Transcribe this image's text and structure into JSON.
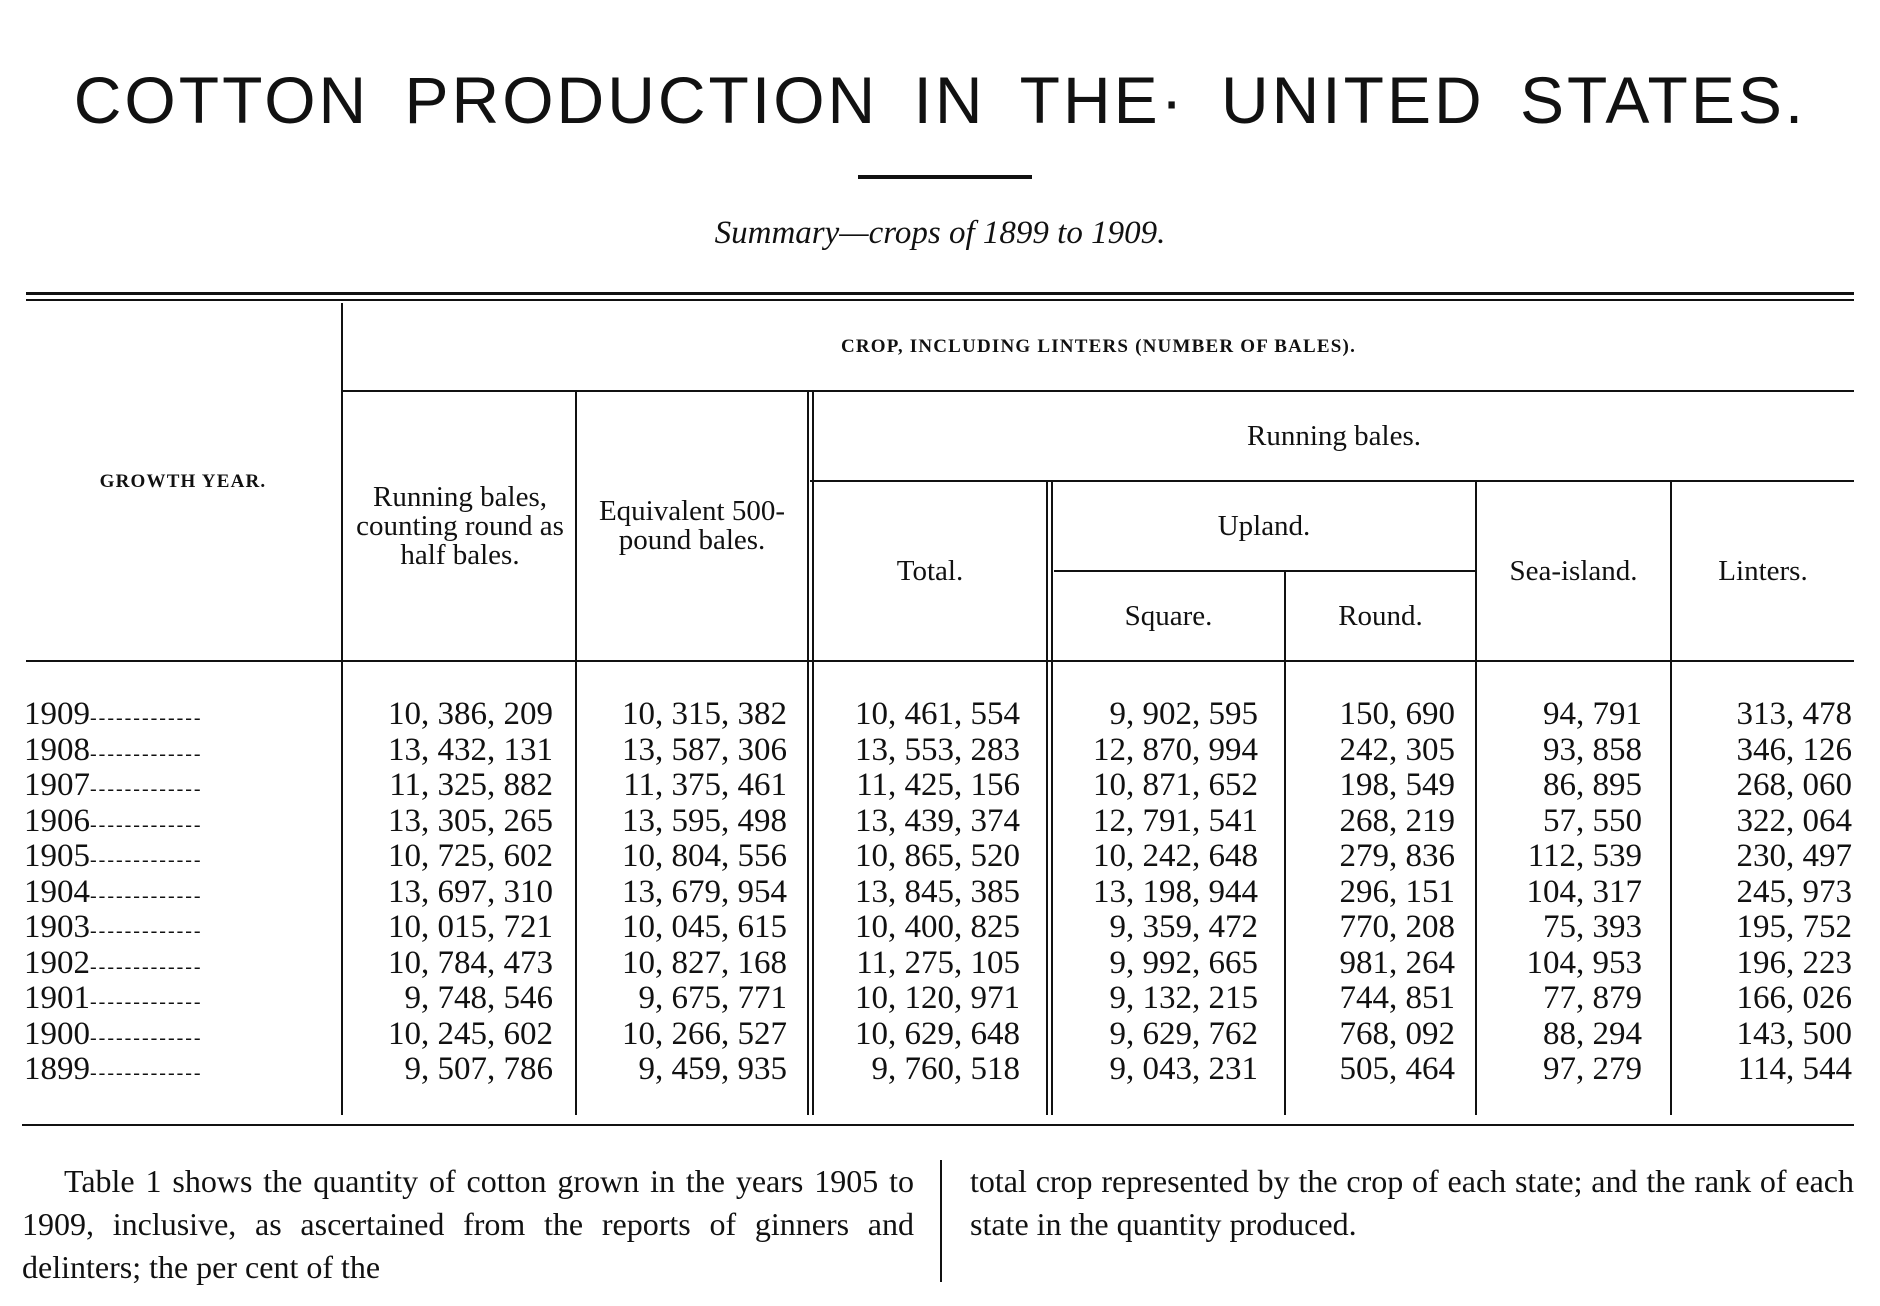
{
  "title": "COTTON PRODUCTION IN THE· UNITED STATES.",
  "subtitle": "Summary—crops of 1899 to 1909.",
  "table": {
    "growth_year_header": "GROWTH YEAR.",
    "group_header": "CROP, INCLUDING LINTERS (NUMBER OF BALES).",
    "running_bales_header": "Running bales.",
    "upland_header": "Upland.",
    "columns": {
      "running_half": "Running bales, counting round as half bales.",
      "equivalent": "Equivalent 500-pound bales.",
      "total": "Total.",
      "square": "Square.",
      "round": "Round.",
      "sea_island": "Sea-island.",
      "linters": "Linters."
    },
    "rows": [
      {
        "year": "1909",
        "running_half": "10, 386, 209",
        "equivalent": "10, 315, 382",
        "total": "10, 461, 554",
        "square": "9, 902, 595",
        "round": "150, 690",
        "sea_island": "94, 791",
        "linters": "313, 478"
      },
      {
        "year": "1908",
        "running_half": "13, 432, 131",
        "equivalent": "13, 587, 306",
        "total": "13, 553, 283",
        "square": "12, 870, 994",
        "round": "242, 305",
        "sea_island": "93, 858",
        "linters": "346, 126"
      },
      {
        "year": "1907",
        "running_half": "11, 325, 882",
        "equivalent": "11, 375, 461",
        "total": "11, 425, 156",
        "square": "10, 871, 652",
        "round": "198, 549",
        "sea_island": "86, 895",
        "linters": "268, 060"
      },
      {
        "year": "1906",
        "running_half": "13, 305, 265",
        "equivalent": "13, 595, 498",
        "total": "13, 439, 374",
        "square": "12, 791, 541",
        "round": "268, 219",
        "sea_island": "57, 550",
        "linters": "322, 064"
      },
      {
        "year": "1905",
        "running_half": "10, 725, 602",
        "equivalent": "10, 804, 556",
        "total": "10, 865, 520",
        "square": "10, 242, 648",
        "round": "279, 836",
        "sea_island": "112, 539",
        "linters": "230, 497"
      },
      {
        "year": "1904",
        "running_half": "13, 697, 310",
        "equivalent": "13, 679, 954",
        "total": "13, 845, 385",
        "square": "13, 198, 944",
        "round": "296, 151",
        "sea_island": "104, 317",
        "linters": "245, 973"
      },
      {
        "year": "1903",
        "running_half": "10, 015, 721",
        "equivalent": "10, 045, 615",
        "total": "10, 400, 825",
        "square": "9, 359, 472",
        "round": "770, 208",
        "sea_island": "75, 393",
        "linters": "195, 752"
      },
      {
        "year": "1902",
        "running_half": "10, 784, 473",
        "equivalent": "10, 827, 168",
        "total": "11, 275, 105",
        "square": "9, 992, 665",
        "round": "981, 264",
        "sea_island": "104, 953",
        "linters": "196, 223"
      },
      {
        "year": "1901",
        "running_half": "9, 748, 546",
        "equivalent": "9, 675, 771",
        "total": "10, 120, 971",
        "square": "9, 132, 215",
        "round": "744, 851",
        "sea_island": "77, 879",
        "linters": "166, 026"
      },
      {
        "year": "1900",
        "running_half": "10, 245, 602",
        "equivalent": "10, 266, 527",
        "total": "10, 629, 648",
        "square": "9, 629, 762",
        "round": "768, 092",
        "sea_island": "88, 294",
        "linters": "143, 500"
      },
      {
        "year": "1899",
        "running_half": "9, 507, 786",
        "equivalent": "9, 459, 935",
        "total": "9, 760, 518",
        "square": "9, 043, 231",
        "round": "505, 464",
        "sea_island": "97, 279",
        "linters": "114, 544"
      }
    ]
  },
  "text": {
    "left": "Table 1 shows the quantity of cotton grown in the years 1905 to 1909, inclusive, as ascertained from the reports of ginners and delinters; the per cent of the",
    "right": "total crop represented by the crop of each state; and the rank of each state in the quantity produced."
  }
}
